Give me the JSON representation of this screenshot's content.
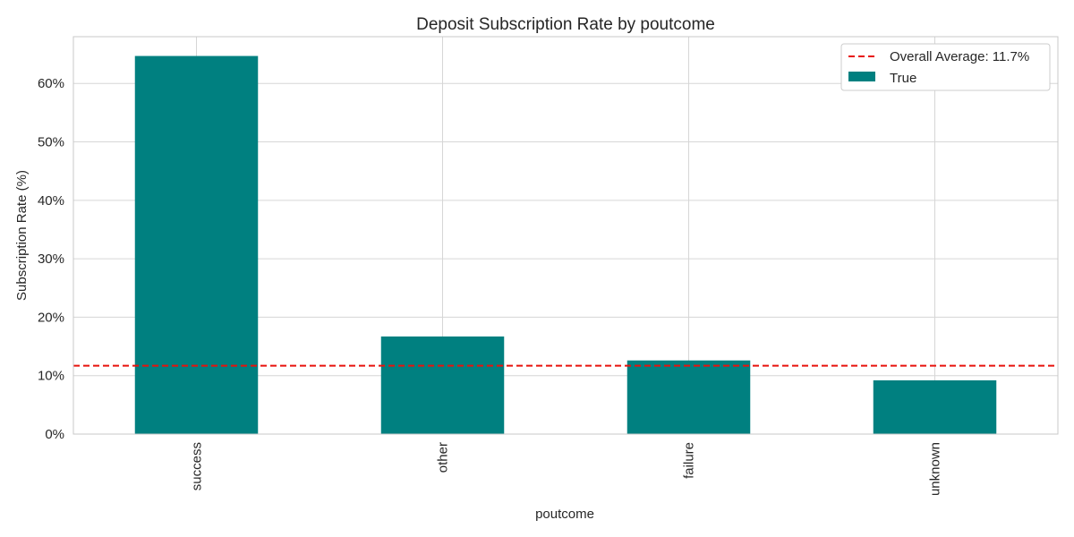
{
  "chart_data": {
    "type": "bar",
    "title": "Deposit Subscription Rate by poutcome",
    "xlabel": "poutcome",
    "ylabel": "Subscription Rate (%)",
    "categories": [
      "success",
      "other",
      "failure",
      "unknown"
    ],
    "series": [
      {
        "name": "True",
        "values": [
          64.7,
          16.7,
          12.6,
          9.2
        ]
      }
    ],
    "ylim": [
      0,
      68
    ],
    "yticks": [
      0,
      10,
      20,
      30,
      40,
      50,
      60
    ],
    "ytick_labels": [
      "0%",
      "10%",
      "20%",
      "30%",
      "40%",
      "50%",
      "60%"
    ],
    "reference_line": {
      "value": 11.7,
      "label": "Overall Average: 11.7%",
      "style": "dashed",
      "color": "#e8120c"
    },
    "legend_placement": "top-right",
    "grid": true,
    "colors": {
      "bar": "#008080",
      "grid": "#d6d6d6",
      "axis": "#c8c8c8"
    }
  }
}
